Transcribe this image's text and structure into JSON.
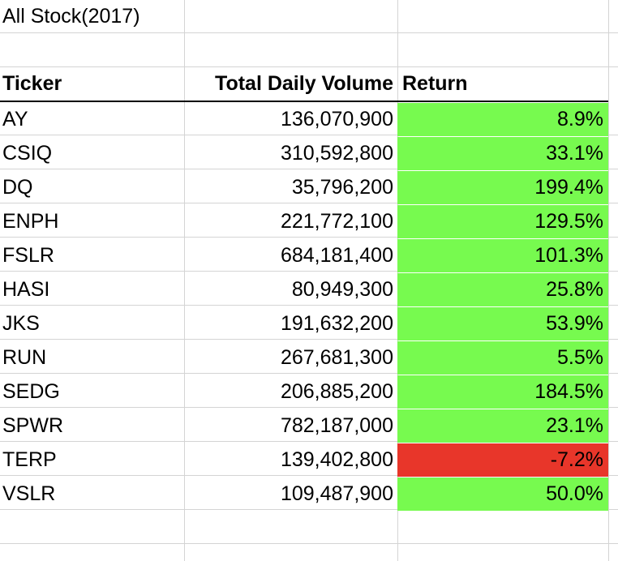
{
  "title": "All Stock(2017)",
  "headers": {
    "ticker": "Ticker",
    "volume": "Total Daily Volume",
    "return": "Return"
  },
  "colors": {
    "positive": "#77fa4f",
    "negative": "#e8362a",
    "grid": "#d4d4d4"
  },
  "rows": [
    {
      "ticker": "AY",
      "volume": "136,070,900",
      "return": "8.9%",
      "status": "positive"
    },
    {
      "ticker": "CSIQ",
      "volume": "310,592,800",
      "return": "33.1%",
      "status": "positive"
    },
    {
      "ticker": "DQ",
      "volume": "35,796,200",
      "return": "199.4%",
      "status": "positive"
    },
    {
      "ticker": "ENPH",
      "volume": "221,772,100",
      "return": "129.5%",
      "status": "positive"
    },
    {
      "ticker": "FSLR",
      "volume": "684,181,400",
      "return": "101.3%",
      "status": "positive"
    },
    {
      "ticker": "HASI",
      "volume": "80,949,300",
      "return": "25.8%",
      "status": "positive"
    },
    {
      "ticker": "JKS",
      "volume": "191,632,200",
      "return": "53.9%",
      "status": "positive"
    },
    {
      "ticker": "RUN",
      "volume": "267,681,300",
      "return": "5.5%",
      "status": "positive"
    },
    {
      "ticker": "SEDG",
      "volume": "206,885,200",
      "return": "184.5%",
      "status": "positive"
    },
    {
      "ticker": "SPWR",
      "volume": "782,187,000",
      "return": "23.1%",
      "status": "positive"
    },
    {
      "ticker": "TERP",
      "volume": "139,402,800",
      "return": "-7.2%",
      "status": "negative"
    },
    {
      "ticker": "VSLR",
      "volume": "109,487,900",
      "return": "50.0%",
      "status": "positive"
    }
  ]
}
